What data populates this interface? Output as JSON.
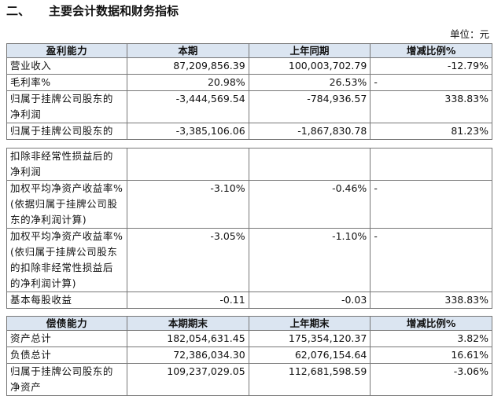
{
  "title": {
    "number": "二、",
    "text": "主要会计数据和财务指标"
  },
  "unit": "单位：元",
  "tables": [
    {
      "header": [
        "盈利能力",
        "本期",
        "上年同期",
        "增减比例%"
      ],
      "rows": [
        [
          "营业收入",
          "87,209,856.39",
          "100,003,702.79",
          "-12.79%"
        ],
        [
          "毛利率%",
          "20.98%",
          "26.53%",
          "-"
        ],
        [
          "归属于挂牌公司股东的净利润",
          "-3,444,569.54",
          "-784,936.57",
          "338.83%"
        ],
        [
          "归属于挂牌公司股东的",
          "-3,385,106.06",
          "-1,867,830.78",
          "81.23%"
        ]
      ]
    },
    {
      "rows": [
        [
          "扣除非经常性损益后的净利润",
          null,
          null,
          null
        ],
        [
          "加权平均净资产收益率%(依据归属于挂牌公司股东的净利润计算)",
          "-3.10%",
          "-0.46%",
          "-"
        ],
        [
          "加权平均净资产收益率%(依归属于挂牌公司股东的扣除非经常性损益后的净利润计算)",
          "-3.05%",
          "-1.10%",
          "-"
        ],
        [
          "基本每股收益",
          "-0.11",
          "-0.03",
          "338.83%"
        ]
      ]
    },
    {
      "header": [
        "偿债能力",
        "本期期末",
        "上年期末",
        "增减比例%"
      ],
      "rows": [
        [
          "资产总计",
          "182,054,631.45",
          "175,354,120.37",
          "3.82%"
        ],
        [
          "负债总计",
          "72,386,034.30",
          "62,076,154.64",
          "16.61%"
        ],
        [
          "归属于挂牌公司股东的净资产",
          "109,237,029.05",
          "112,681,598.59",
          "-3.06%"
        ]
      ]
    }
  ]
}
